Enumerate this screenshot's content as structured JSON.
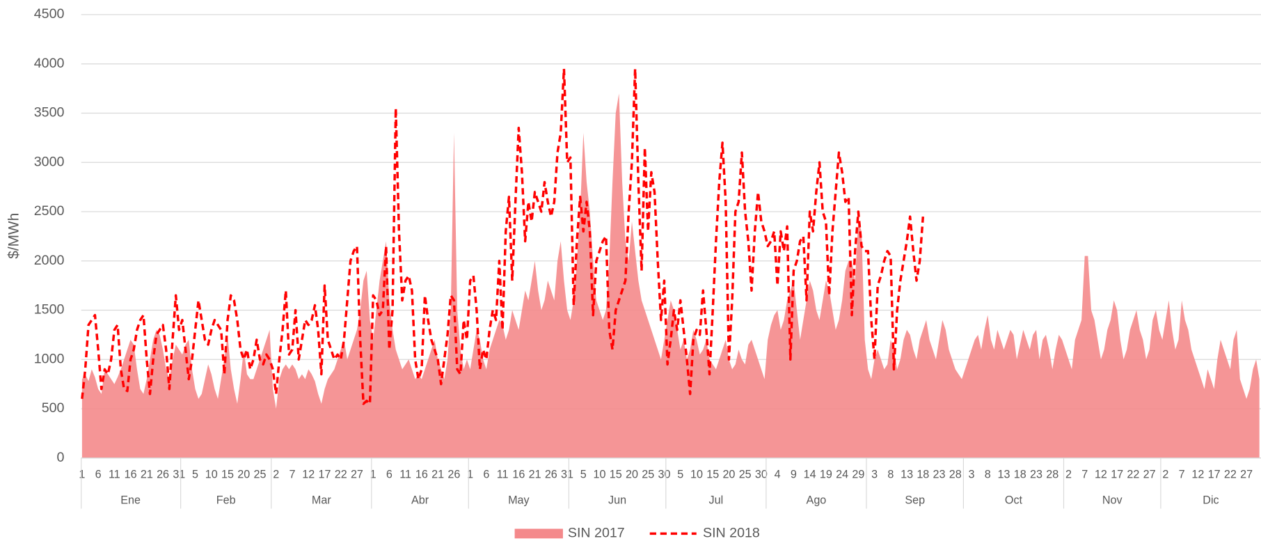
{
  "chart_data": {
    "type": "combo",
    "y_label": "$/MWh",
    "ylim": [
      0,
      4500
    ],
    "yticks": [
      0,
      500,
      1000,
      1500,
      2000,
      2500,
      3000,
      3500,
      4000,
      4500
    ],
    "grid": true,
    "legend": "bottom",
    "x_groups": [
      {
        "label": "Ene",
        "count": 31
      },
      {
        "label": "Feb",
        "count": 28
      },
      {
        "label": "Mar",
        "count": 31
      },
      {
        "label": "Abr",
        "count": 30
      },
      {
        "label": "May",
        "count": 31
      },
      {
        "label": "Jun",
        "count": 30
      },
      {
        "label": "Jul",
        "count": 31
      },
      {
        "label": "Ago",
        "count": 31
      },
      {
        "label": "Sep",
        "count": 30
      },
      {
        "label": "Oct",
        "count": 31
      },
      {
        "label": "Nov",
        "count": 30
      },
      {
        "label": "Dic",
        "count": 31
      }
    ],
    "categories": [
      "1",
      null,
      null,
      null,
      null,
      "6",
      null,
      null,
      null,
      null,
      "11",
      null,
      null,
      null,
      null,
      "16",
      null,
      null,
      null,
      null,
      "21",
      null,
      null,
      null,
      null,
      "26",
      null,
      null,
      null,
      null,
      "31",
      null,
      null,
      null,
      null,
      "5",
      null,
      null,
      null,
      null,
      "10",
      null,
      null,
      null,
      null,
      "15",
      null,
      null,
      null,
      null,
      "20",
      null,
      null,
      null,
      null,
      "25",
      null,
      null,
      null,
      null,
      "2",
      null,
      null,
      null,
      null,
      "7",
      null,
      null,
      null,
      null,
      "12",
      null,
      null,
      null,
      null,
      "17",
      null,
      null,
      null,
      null,
      "22",
      null,
      null,
      null,
      null,
      "27",
      null,
      null,
      null,
      null,
      "1",
      null,
      null,
      null,
      null,
      "6",
      null,
      null,
      null,
      null,
      "11",
      null,
      null,
      null,
      null,
      "16",
      null,
      null,
      null,
      null,
      "21",
      null,
      null,
      null,
      null,
      "26",
      null,
      null,
      null,
      null,
      "1",
      null,
      null,
      null,
      null,
      "6",
      null,
      null,
      null,
      null,
      "11",
      null,
      null,
      null,
      null,
      "16",
      null,
      null,
      null,
      null,
      "21",
      null,
      null,
      null,
      null,
      "26",
      null,
      null,
      null,
      null,
      "31",
      null,
      null,
      null,
      null,
      "5",
      null,
      null,
      null,
      null,
      "10",
      null,
      null,
      null,
      null,
      "15",
      null,
      null,
      null,
      null,
      "20",
      null,
      null,
      null,
      null,
      "25",
      null,
      null,
      null,
      null,
      "30",
      null,
      null,
      null,
      null,
      "5",
      null,
      null,
      null,
      null,
      "10",
      null,
      null,
      null,
      null,
      "15",
      null,
      null,
      null,
      null,
      "20",
      null,
      null,
      null,
      null,
      "25",
      null,
      null,
      null,
      null,
      "30",
      null,
      null,
      null,
      null,
      "4",
      null,
      null,
      null,
      null,
      "9",
      null,
      null,
      null,
      null,
      "14",
      null,
      null,
      null,
      null,
      "19",
      null,
      null,
      null,
      null,
      "24",
      null,
      null,
      null,
      null,
      "29",
      null,
      null,
      null,
      null,
      "3",
      null,
      null,
      null,
      null,
      "8",
      null,
      null,
      null,
      null,
      "13",
      null,
      null,
      null,
      null,
      "18",
      null,
      null,
      null,
      null,
      "23",
      null,
      null,
      null,
      null,
      "28",
      null,
      null,
      null,
      null,
      "3",
      null,
      null,
      null,
      null,
      "8",
      null,
      null,
      null,
      null,
      "13",
      null,
      null,
      null,
      null,
      "18",
      null,
      null,
      null,
      null,
      "23",
      null,
      null,
      null,
      null,
      "28",
      null,
      null,
      null,
      null,
      "2",
      null,
      null,
      null,
      null,
      "7",
      null,
      null,
      null,
      null,
      "12",
      null,
      null,
      null,
      null,
      "17",
      null,
      null,
      null,
      null,
      "22",
      null,
      null,
      null,
      null,
      "27",
      null,
      null,
      null,
      null,
      "2",
      null,
      null,
      null,
      null,
      "7",
      null,
      null,
      null,
      null,
      "12",
      null,
      null,
      null,
      null,
      "17",
      null,
      null,
      null,
      null,
      "22",
      null,
      null,
      null,
      null,
      "27",
      null,
      null,
      null,
      null
    ],
    "series": [
      {
        "name": "SIN 2017",
        "type": "area",
        "color": "#f4898b",
        "values": [
          800,
          850,
          780,
          900,
          820,
          700,
          650,
          900,
          850,
          800,
          750,
          820,
          900,
          1000,
          1100,
          1200,
          1150,
          900,
          700,
          650,
          800,
          1000,
          1200,
          1300,
          1250,
          1100,
          900,
          800,
          1000,
          1150,
          1100,
          1050,
          1150,
          1200,
          900,
          700,
          600,
          650,
          800,
          950,
          850,
          700,
          600,
          800,
          1000,
          1250,
          900,
          700,
          550,
          800,
          1100,
          850,
          800,
          800,
          900,
          1000,
          1100,
          1200,
          1300,
          700,
          500,
          800,
          900,
          950,
          900,
          950,
          900,
          800,
          850,
          800,
          900,
          850,
          780,
          650,
          550,
          700,
          800,
          850,
          900,
          1000,
          1100,
          1200,
          1000,
          1100,
          1200,
          1300,
          1500,
          1800,
          1900,
          1400,
          1200,
          1500,
          1800,
          2000,
          2200,
          1600,
          1300,
          1100,
          1000,
          900,
          950,
          1000,
          900,
          800,
          850,
          800,
          900,
          1000,
          1100,
          1200,
          1000,
          900,
          800,
          1000,
          1500,
          3300,
          1500,
          1100,
          900,
          1000,
          900,
          1100,
          1300,
          1200,
          1000,
          900,
          1100,
          1200,
          1300,
          1400,
          1350,
          1200,
          1300,
          1500,
          1400,
          1300,
          1500,
          1700,
          1600,
          1800,
          2000,
          1700,
          1500,
          1600,
          1800,
          1700,
          1600,
          2000,
          2200,
          1800,
          1500,
          1400,
          1600,
          2000,
          2500,
          3300,
          2800,
          2500,
          2000,
          1600,
          1500,
          1400,
          1500,
          2000,
          2800,
          3500,
          3700,
          2800,
          2200,
          2000,
          2400,
          2100,
          1800,
          1600,
          1500,
          1400,
          1300,
          1200,
          1100,
          1000,
          1200,
          1400,
          1600,
          1500,
          1300,
          1100,
          1200,
          1000,
          1100,
          1300,
          1200,
          1050,
          1100,
          1200,
          1000,
          950,
          900,
          1000,
          1100,
          1200,
          1000,
          900,
          950,
          1100,
          1000,
          950,
          1150,
          1200,
          1100,
          1000,
          900,
          800,
          1200,
          1350,
          1450,
          1500,
          1300,
          1400,
          1600,
          1700,
          1800,
          1500,
          1200,
          1400,
          1600,
          1800,
          1700,
          1500,
          1400,
          1600,
          1800,
          1700,
          1500,
          1300,
          1400,
          1600,
          1900,
          2000,
          2000,
          1800,
          2400,
          2300,
          1200,
          900,
          800,
          1000,
          1100,
          1000,
          900,
          950,
          1200,
          1100,
          900,
          1000,
          1200,
          1300,
          1250,
          1100,
          1000,
          1200,
          1300,
          1400,
          1200,
          1100,
          1000,
          1200,
          1400,
          1300,
          1100,
          1000,
          900,
          850,
          800,
          900,
          1000,
          1100,
          1200,
          1250,
          1100,
          1300,
          1450,
          1200,
          1100,
          1300,
          1200,
          1100,
          1200,
          1300,
          1250,
          1000,
          1150,
          1300,
          1200,
          1100,
          1250,
          1300,
          1000,
          1200,
          1250,
          1100,
          900,
          1100,
          1250,
          1200,
          1100,
          1000,
          900,
          1200,
          1300,
          1400,
          2050,
          2050,
          1500,
          1400,
          1200,
          1000,
          1100,
          1300,
          1400,
          1600,
          1500,
          1200,
          1000,
          1100,
          1300,
          1400,
          1500,
          1300,
          1200,
          1000,
          1100,
          1400,
          1500,
          1300,
          1200,
          1400,
          1600,
          1300,
          1100,
          1200,
          1600,
          1400,
          1300,
          1100,
          1000,
          900,
          800,
          700,
          900,
          800,
          700,
          1000,
          1200,
          1100,
          1000,
          900,
          1200,
          1300,
          800,
          700,
          600,
          700,
          900,
          1000,
          800
        ]
      },
      {
        "name": "SIN 2018",
        "type": "line",
        "dashed": true,
        "color": "#ff0000",
        "values": [
          600,
          900,
          1350,
          1400,
          1450,
          1100,
          700,
          900,
          850,
          1000,
          1300,
          1350,
          900,
          700,
          680,
          1000,
          1100,
          1300,
          1400,
          1450,
          1000,
          650,
          1000,
          1250,
          1300,
          1350,
          1100,
          700,
          1200,
          1650,
          1300,
          1400,
          1100,
          800,
          1000,
          1300,
          1600,
          1400,
          1200,
          1150,
          1300,
          1400,
          1350,
          1300,
          850,
          1400,
          1650,
          1600,
          1400,
          1100,
          1000,
          1100,
          900,
          1000,
          1200,
          1000,
          950,
          1050,
          1000,
          900,
          650,
          1000,
          1300,
          1700,
          1050,
          1100,
          1500,
          1000,
          1200,
          1400,
          1350,
          1400,
          1550,
          1300,
          850,
          1750,
          1200,
          1100,
          1000,
          1050,
          1000,
          1200,
          1600,
          2000,
          2100,
          2150,
          1200,
          550,
          580,
          550,
          1650,
          1600,
          1450,
          1500,
          2150,
          1100,
          1500,
          3550,
          2300,
          1600,
          1800,
          1850,
          1700,
          1000,
          800,
          900,
          1650,
          1400,
          1200,
          1100,
          1000,
          750,
          1000,
          1250,
          1650,
          1600,
          900,
          850,
          1400,
          1200,
          1800,
          1850,
          1500,
          900,
          1100,
          1000,
          1300,
          1500,
          1400,
          2000,
          1300,
          2300,
          2650,
          1800,
          2600,
          3350,
          2900,
          2200,
          2600,
          2400,
          2700,
          2600,
          2500,
          2800,
          2600,
          2450,
          2600,
          3100,
          3300,
          3950,
          3000,
          3050,
          1550,
          2200,
          2650,
          2300,
          2600,
          2300,
          1450,
          2000,
          2100,
          2200,
          2250,
          1300,
          1100,
          1500,
          1600,
          1700,
          1800,
          2500,
          3000,
          3950,
          2800,
          1900,
          3150,
          2300,
          2900,
          2700,
          2000,
          1400,
          1800,
          950,
          1200,
          1500,
          1300,
          1600,
          1300,
          1000,
          650,
          1200,
          1300,
          1250,
          1700,
          1300,
          850,
          1500,
          2200,
          2800,
          3200,
          2600,
          1000,
          1600,
          2500,
          2600,
          3100,
          2500,
          2200,
          1700,
          2300,
          2700,
          2400,
          2300,
          2150,
          2200,
          2300,
          1750,
          2300,
          2100,
          2350,
          1000,
          1900,
          2000,
          2200,
          2250,
          1600,
          2500,
          2300,
          2700,
          3000,
          2500,
          2400,
          1650,
          2300,
          2700,
          3100,
          2900,
          2600,
          2650,
          1450,
          2100,
          2500,
          2150,
          2100,
          2100,
          1400,
          1000,
          1750,
          1850,
          2000,
          2100,
          2050,
          900,
          1500,
          1800,
          2000,
          2200,
          2450,
          2100,
          1800,
          2000,
          2450,
          null,
          null,
          null,
          null,
          null,
          null,
          null,
          null,
          null,
          null,
          null,
          null,
          null,
          null,
          null,
          null,
          null,
          null,
          null,
          null,
          null,
          null,
          null,
          null,
          null,
          null,
          null,
          null,
          null,
          null,
          null,
          null,
          null,
          null,
          null,
          null,
          null,
          null,
          null,
          null,
          null,
          null,
          null,
          null,
          null,
          null,
          null,
          null,
          null,
          null,
          null,
          null,
          null,
          null,
          null,
          null,
          null,
          null,
          null,
          null,
          null,
          null,
          null,
          null,
          null,
          null,
          null,
          null,
          null,
          null,
          null,
          null,
          null,
          null,
          null,
          null,
          null,
          null,
          null,
          null,
          null,
          null,
          null,
          null,
          null,
          null,
          null,
          null,
          null,
          null,
          null,
          null,
          null,
          null,
          null,
          null,
          null,
          null,
          null,
          null,
          null,
          null,
          null,
          null
        ]
      }
    ]
  }
}
